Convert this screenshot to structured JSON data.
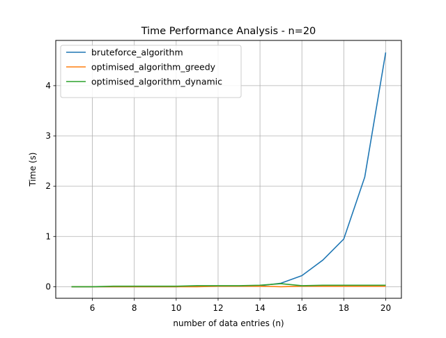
{
  "chart_data": {
    "type": "line",
    "title": "Time Performance Analysis - n=20",
    "xlabel": "number of data entries (n)",
    "ylabel": "Time (s)",
    "xlim": [
      4.25,
      20.75
    ],
    "ylim": [
      -0.23,
      4.9
    ],
    "xticks": [
      6,
      8,
      10,
      12,
      14,
      16,
      18,
      20
    ],
    "yticks": [
      0,
      1,
      2,
      3,
      4
    ],
    "grid": true,
    "legend_position": "top-left",
    "x": [
      5,
      6,
      7,
      8,
      9,
      10,
      11,
      12,
      13,
      14,
      15,
      16,
      17,
      18,
      19,
      20
    ],
    "series": [
      {
        "name": "bruteforce_algorithm",
        "color": "#1f77b4",
        "values": [
          0.0,
          0.0,
          0.0,
          0.0,
          0.0,
          0.0,
          0.01,
          0.01,
          0.01,
          0.02,
          0.07,
          0.22,
          0.53,
          0.95,
          2.18,
          4.66
        ]
      },
      {
        "name": "optimised_algorithm_greedy",
        "color": "#ff7f0e",
        "values": [
          0.0,
          0.0,
          0.0,
          0.0,
          0.0,
          0.0,
          0.0,
          0.01,
          0.01,
          0.01,
          0.0,
          0.01,
          0.01,
          0.01,
          0.01,
          0.01
        ]
      },
      {
        "name": "optimised_algorithm_dynamic",
        "color": "#2ca02c",
        "values": [
          0.0,
          0.0,
          0.01,
          0.01,
          0.01,
          0.01,
          0.02,
          0.02,
          0.02,
          0.03,
          0.06,
          0.02,
          0.03,
          0.03,
          0.03,
          0.03
        ]
      }
    ]
  }
}
